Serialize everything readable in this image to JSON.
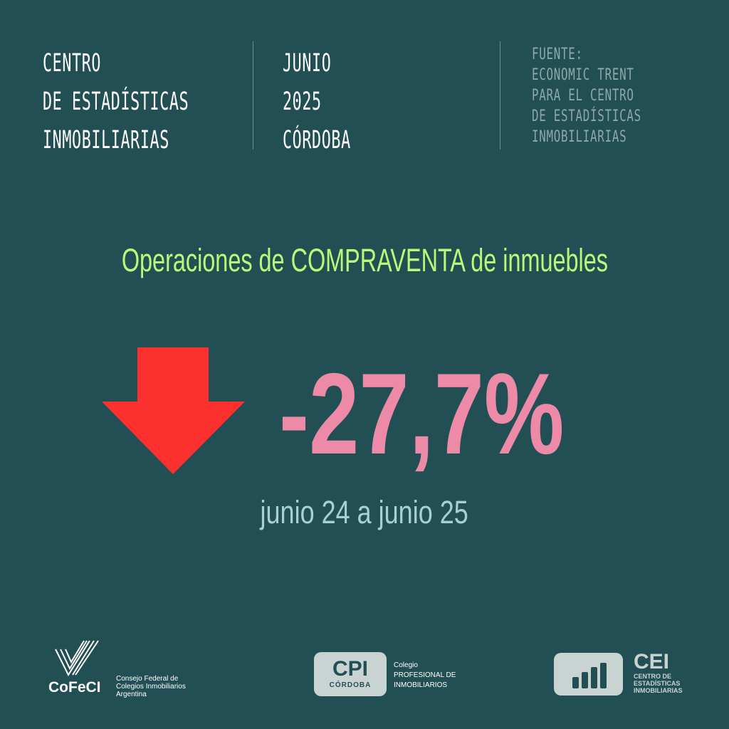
{
  "header": {
    "center_lines": [
      "CENTRO",
      "DE ESTADÍSTICAS",
      "INMOBILIARIAS"
    ],
    "date_lines": [
      "JUNIO",
      "2025",
      "CÓRDOBA"
    ],
    "source_lines": [
      "FUENTE:",
      "ECONOMIC TRENT",
      "PARA EL CENTRO",
      "DE ESTADÍSTICAS",
      "INMOBILIARIAS"
    ]
  },
  "headline": "Operaciones de COMPRAVENTA de inmuebles",
  "metric": {
    "value_text": "-27,7%",
    "value": -27.7,
    "direction": "down",
    "period": "junio 24 a junio 25"
  },
  "colors": {
    "background": "#224f54",
    "headline": "#b7fa7a",
    "value": "#ec8aa8",
    "arrow": "#fd3030",
    "period": "#a9cfd4"
  },
  "icons": {
    "arrow": "arrow-down-icon"
  },
  "footer": {
    "cofeci": {
      "name": "CoFeCI",
      "description_lines": [
        "Consejo Federal de",
        "Colegios Inmobiliarios",
        "Argentina"
      ]
    },
    "cpi": {
      "abbr": "CPI",
      "city": "CÓRDOBA",
      "description_lines": [
        "Colegio",
        "PROFESIONAL DE",
        "INMOBILIARIOS"
      ]
    },
    "cei": {
      "abbr": "CEI",
      "description_lines": [
        "CENTRO DE",
        "ESTADÍSTICAS",
        "INMOBILIARIAS"
      ]
    }
  }
}
